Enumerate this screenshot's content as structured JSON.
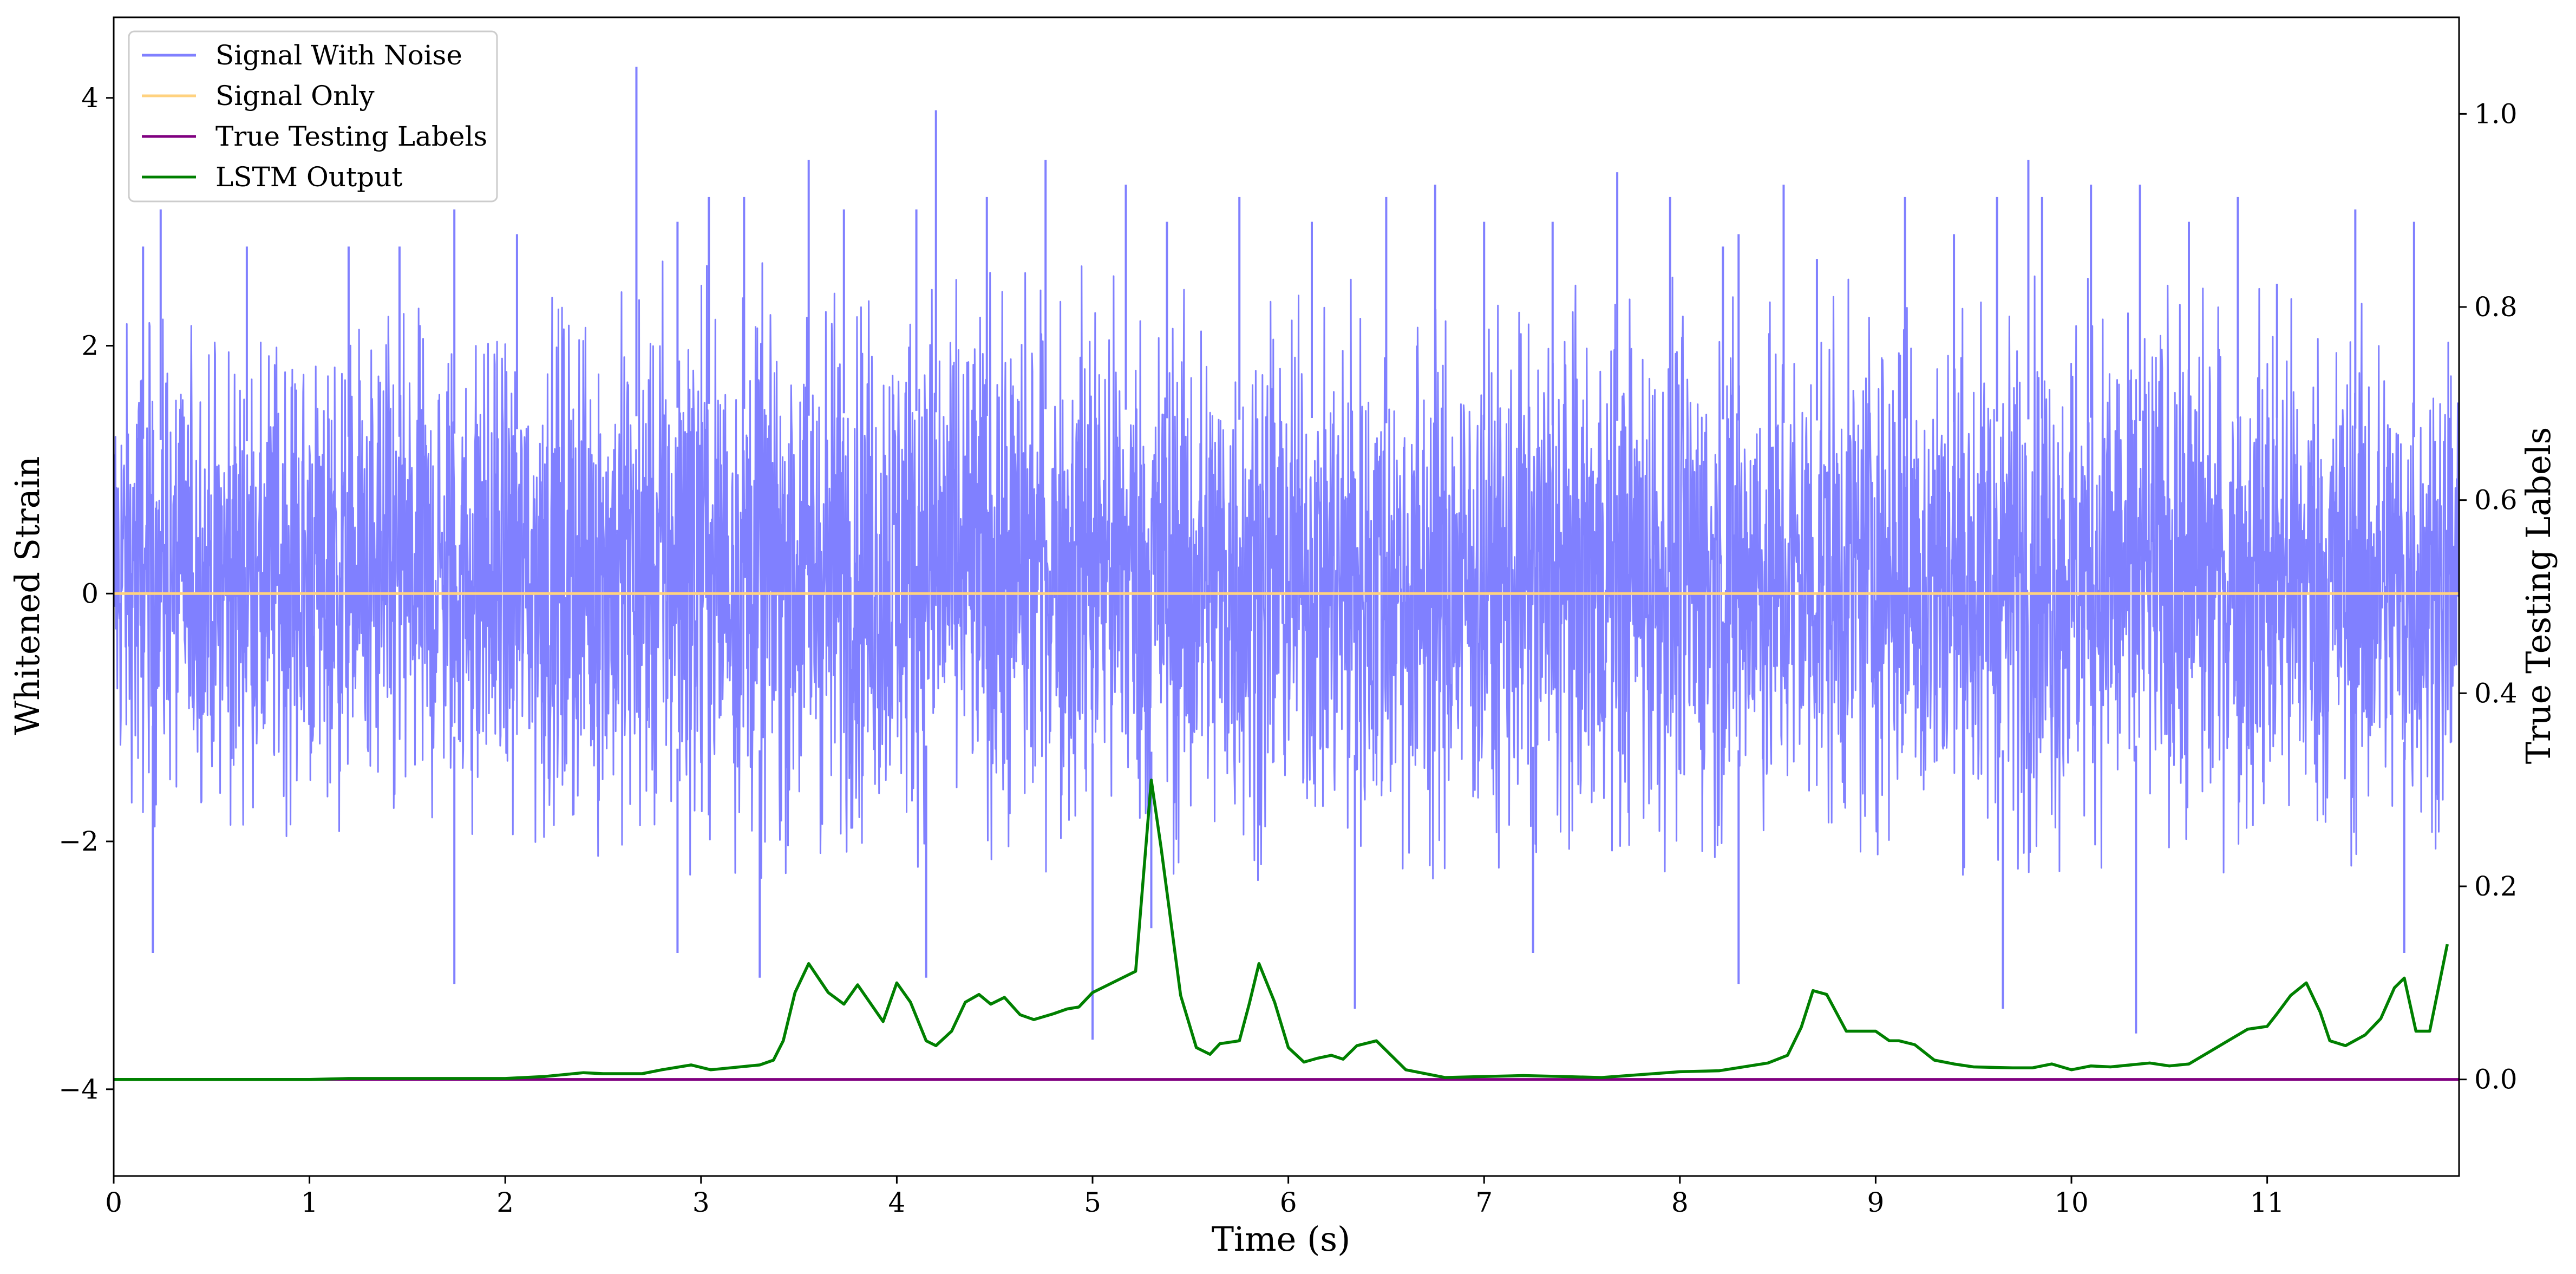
{
  "chart_data": {
    "type": "line",
    "title": "",
    "xlabel": "Time (s)",
    "ylabel": "Whitened Strain",
    "y2label": "True Testing Labels",
    "xlim": [
      0,
      11.98
    ],
    "ylim": [
      -4.7,
      4.65
    ],
    "y2lim": [
      -0.1,
      1.1
    ],
    "x_ticks": [
      0,
      1,
      2,
      3,
      4,
      5,
      6,
      7,
      8,
      9,
      10,
      11
    ],
    "x_tick_labels": [
      "0",
      "1",
      "2",
      "3",
      "4",
      "5",
      "6",
      "7",
      "8",
      "9",
      "10",
      "11"
    ],
    "y_ticks": [
      -4,
      -2,
      0,
      2,
      4
    ],
    "y_tick_labels": [
      "−4",
      "−2",
      "0",
      "2",
      "4"
    ],
    "y2_ticks": [
      0,
      0.2,
      0.4,
      0.6,
      0.8,
      1.0
    ],
    "y2_tick_labels": [
      "0.0",
      "0.2",
      "0.4",
      "0.6",
      "0.8",
      "1.0"
    ],
    "grid": false,
    "legend_position": "top-left",
    "legend": [
      "Signal With Noise",
      "Signal Only",
      "True Testing Labels",
      "LSTM Output"
    ],
    "colors": {
      "Signal With Noise": "#8080ff",
      "Signal Only": "#ffd27f",
      "True Testing Labels": "#800080",
      "LSTM Output": "#008000"
    },
    "series": [
      {
        "name": "Signal With Noise",
        "axis": "left",
        "description_of_values": "dense noise envelope",
        "envelope": {
          "x": [
            0,
            0.5,
            1,
            1.5,
            2,
            2.5,
            3,
            3.5,
            4,
            4.5,
            5,
            5.5,
            6,
            6.5,
            7,
            7.5,
            8,
            8.5,
            9,
            9.5,
            10,
            10.5,
            11,
            11.5,
            11.98
          ],
          "upper": [
            2.3,
            2.2,
            2.3,
            2.3,
            2.4,
            2.5,
            2.8,
            2.6,
            2.7,
            2.6,
            2.8,
            2.5,
            2.6,
            2.5,
            2.4,
            2.5,
            2.6,
            2.5,
            2.6,
            2.5,
            2.6,
            2.5,
            2.6,
            2.4,
            2.2
          ],
          "lower": [
            -1.9,
            -2.0,
            -2.0,
            -2.1,
            -2.1,
            -2.2,
            -2.3,
            -2.3,
            -2.2,
            -2.3,
            -2.2,
            -2.4,
            -2.3,
            -2.4,
            -2.3,
            -2.2,
            -2.3,
            -2.3,
            -2.2,
            -2.3,
            -2.3,
            -2.2,
            -2.3,
            -2.3,
            -2.0
          ]
        },
        "spikes": {
          "x": [
            0.15,
            0.24,
            0.68,
            1.2,
            1.46,
            1.74,
            2.06,
            2.67,
            2.88,
            3.04,
            3.22,
            3.55,
            3.73,
            4.1,
            4.2,
            4.46,
            4.76,
            5.17,
            5.38,
            5.75,
            6.12,
            6.5,
            6.75,
            7.0,
            7.35,
            7.68,
            7.95,
            8.22,
            8.3,
            8.53,
            8.7,
            9.15,
            9.4,
            9.62,
            9.78,
            9.85,
            10.1,
            10.35,
            10.6,
            10.85,
            11.05,
            11.45,
            11.75,
            0.2,
            1.74,
            2.88,
            3.3,
            4.15,
            5.0,
            5.3,
            6.34,
            7.25,
            8.3,
            9.65,
            10.33,
            11.7
          ],
          "y": [
            2.8,
            3.1,
            2.8,
            2.8,
            2.8,
            3.1,
            2.9,
            4.25,
            3.0,
            3.2,
            3.2,
            3.5,
            3.1,
            3.1,
            3.9,
            3.2,
            3.5,
            3.3,
            3.0,
            3.2,
            3.0,
            3.2,
            3.3,
            3.0,
            3.0,
            3.4,
            3.2,
            2.8,
            2.9,
            3.3,
            2.7,
            3.2,
            2.9,
            3.2,
            3.5,
            3.2,
            3.3,
            3.3,
            3.0,
            3.2,
            2.5,
            3.1,
            3.0,
            -2.9,
            -3.15,
            -2.9,
            -3.1,
            -3.1,
            -3.6,
            -2.7,
            -3.35,
            -2.9,
            -3.15,
            -3.35,
            -3.55,
            -2.9
          ]
        }
      },
      {
        "name": "Signal Only",
        "axis": "left",
        "x": [
          0,
          11.98
        ],
        "values": [
          0,
          0
        ]
      },
      {
        "name": "True Testing Labels",
        "axis": "right",
        "x": [
          0,
          11.98
        ],
        "values": [
          0,
          0
        ]
      },
      {
        "name": "LSTM Output",
        "axis": "right",
        "x": [
          0,
          0.5,
          1.0,
          1.2,
          1.5,
          2.0,
          2.2,
          2.4,
          2.5,
          2.7,
          2.8,
          2.95,
          3.05,
          3.3,
          3.37,
          3.42,
          3.48,
          3.55,
          3.65,
          3.73,
          3.8,
          3.93,
          4.0,
          4.07,
          4.15,
          4.2,
          4.28,
          4.35,
          4.42,
          4.48,
          4.55,
          4.63,
          4.7,
          4.8,
          4.87,
          4.93,
          5.0,
          5.1,
          5.17,
          5.22,
          5.3,
          5.35,
          5.45,
          5.53,
          5.6,
          5.65,
          5.75,
          5.8,
          5.85,
          5.93,
          6.0,
          6.08,
          6.15,
          6.22,
          6.28,
          6.35,
          6.45,
          6.6,
          6.8,
          7.0,
          7.2,
          7.4,
          7.6,
          7.8,
          8.0,
          8.2,
          8.45,
          8.55,
          8.62,
          8.68,
          8.75,
          8.85,
          8.95,
          9.0,
          9.07,
          9.12,
          9.2,
          9.3,
          9.4,
          9.5,
          9.7,
          9.8,
          9.9,
          10.0,
          10.1,
          10.2,
          10.4,
          10.5,
          10.6,
          10.7,
          10.8,
          10.9,
          11.0,
          11.05,
          11.12,
          11.2,
          11.27,
          11.32,
          11.4,
          11.5,
          11.58,
          11.65,
          11.7,
          11.76,
          11.83,
          11.92
        ],
        "values": [
          0.0,
          0.0,
          0.0,
          0.001,
          0.001,
          0.001,
          0.003,
          0.007,
          0.006,
          0.006,
          0.01,
          0.015,
          0.01,
          0.015,
          0.02,
          0.04,
          0.09,
          0.12,
          0.09,
          0.078,
          0.098,
          0.06,
          0.1,
          0.08,
          0.04,
          0.035,
          0.05,
          0.08,
          0.088,
          0.078,
          0.085,
          0.067,
          0.062,
          0.068,
          0.073,
          0.075,
          0.09,
          0.1,
          0.107,
          0.112,
          0.31,
          0.24,
          0.087,
          0.033,
          0.026,
          0.037,
          0.04,
          0.078,
          0.12,
          0.08,
          0.033,
          0.018,
          0.022,
          0.025,
          0.021,
          0.035,
          0.04,
          0.01,
          0.002,
          0.003,
          0.004,
          0.003,
          0.002,
          0.005,
          0.008,
          0.009,
          0.017,
          0.025,
          0.054,
          0.092,
          0.088,
          0.05,
          0.05,
          0.05,
          0.04,
          0.04,
          0.036,
          0.02,
          0.016,
          0.013,
          0.012,
          0.012,
          0.016,
          0.01,
          0.014,
          0.013,
          0.017,
          0.014,
          0.016,
          0.028,
          0.04,
          0.052,
          0.055,
          0.068,
          0.087,
          0.1,
          0.07,
          0.04,
          0.035,
          0.046,
          0.063,
          0.095,
          0.105,
          0.05,
          0.05,
          0.14
        ]
      }
    ]
  }
}
